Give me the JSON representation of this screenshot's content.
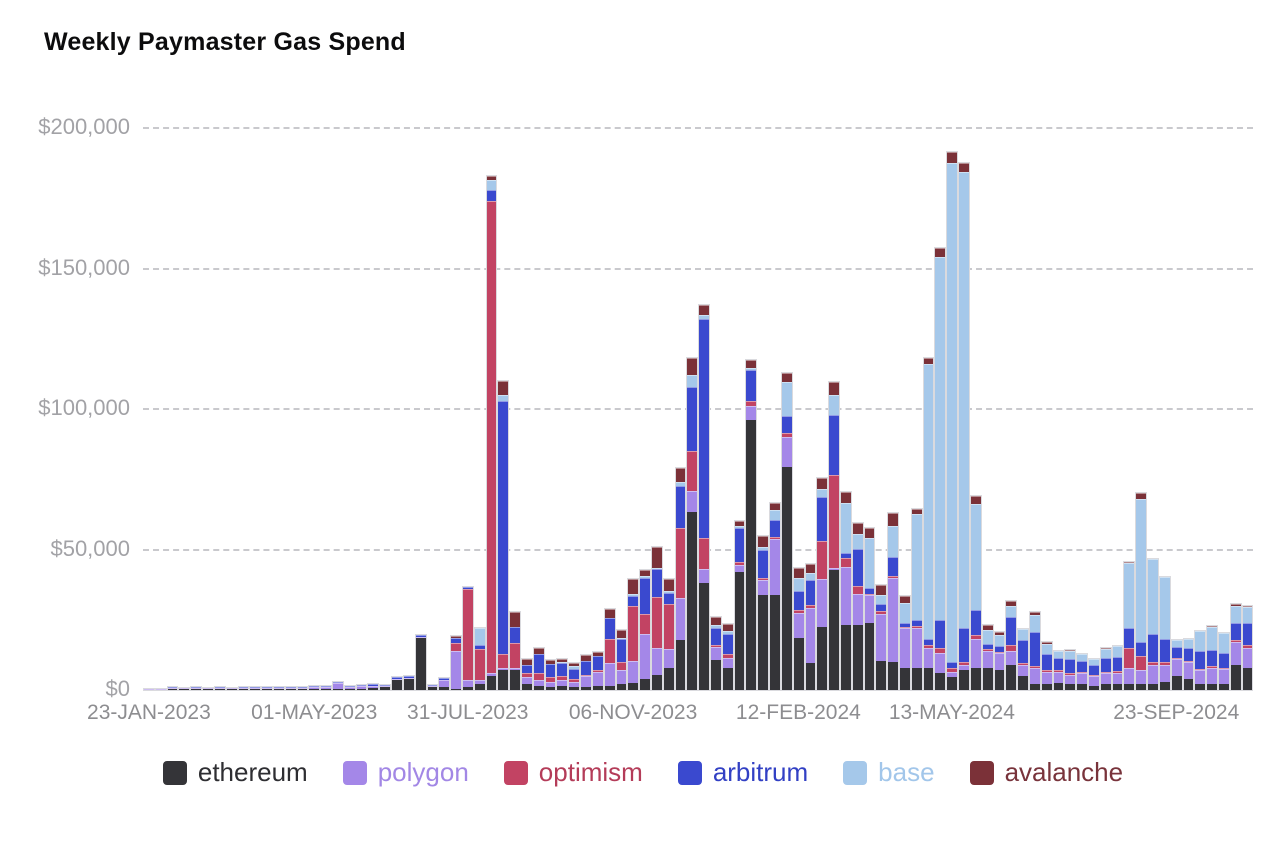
{
  "title": "Weekly Paymaster Gas Spend",
  "chart_data": {
    "type": "bar",
    "stacked": true,
    "title": "Weekly Paymaster Gas Spend",
    "xlabel": "",
    "ylabel": "",
    "ylim": [
      0,
      200000
    ],
    "grid": "horizontal-dashed",
    "legend_position": "bottom-center",
    "x_unit": "week",
    "x_start_date": "2023-01-23",
    "x_step_days": 7,
    "num_bars": 94,
    "y_ticks": [
      {
        "value": 0,
        "label": "$0"
      },
      {
        "value": 50000,
        "label": "$50,000"
      },
      {
        "value": 100000,
        "label": "$100,000"
      },
      {
        "value": 150000,
        "label": "$150,000"
      },
      {
        "value": 200000,
        "label": "$200,000"
      }
    ],
    "x_ticks": [
      {
        "index": 0,
        "label": "23-JAN-2023"
      },
      {
        "index": 14,
        "label": "01-MAY-2023"
      },
      {
        "index": 27,
        "label": "31-JUL-2023"
      },
      {
        "index": 41,
        "label": "06-NOV-2023"
      },
      {
        "index": 55,
        "label": "12-FEB-2024"
      },
      {
        "index": 68,
        "label": "13-MAY-2024"
      },
      {
        "index": 87,
        "label": "23-SEP-2024"
      }
    ],
    "series": [
      {
        "name": "ethereum",
        "color": "#343438",
        "text_color": "#2e2e32",
        "values": [
          150,
          150,
          200,
          200,
          200,
          250,
          250,
          300,
          300,
          300,
          300,
          350,
          400,
          400,
          200,
          200,
          200,
          200,
          200,
          800,
          1000,
          3500,
          4000,
          18500,
          1000,
          1200,
          500,
          1000,
          2000,
          5000,
          7000,
          7000,
          2000,
          1500,
          1000,
          1500,
          1000,
          1000,
          1500,
          1500,
          2000,
          2500,
          4000,
          5500,
          8000,
          17800,
          63500,
          38000,
          10700,
          7800,
          42000,
          96000,
          33800,
          33800,
          79500,
          18400,
          9500,
          22500,
          42700,
          23100,
          23100,
          23700,
          10500,
          10000,
          8000,
          8000,
          8000,
          6000,
          4500,
          7000,
          8000,
          8000,
          7000,
          9000,
          5000,
          2000,
          2000,
          2500,
          2000,
          2000,
          1500,
          2000,
          2000,
          2000,
          2000,
          2000,
          3000,
          5000,
          4000,
          2000,
          2000,
          2000,
          9000,
          8000
        ]
      },
      {
        "name": "polygon",
        "color": "#a487e8",
        "text_color": "#a287e5",
        "values": [
          50,
          50,
          50,
          100,
          100,
          100,
          100,
          150,
          150,
          200,
          250,
          300,
          300,
          350,
          800,
          1000,
          2200,
          1000,
          1100,
          600,
          400,
          300,
          300,
          300,
          300,
          2200,
          13500,
          2500,
          1500,
          1000,
          1000,
          1000,
          2500,
          2000,
          2000,
          2000,
          2000,
          4000,
          5000,
          8000,
          5000,
          8000,
          16000,
          9500,
          6500,
          14800,
          7500,
          5000,
          4500,
          3500,
          2500,
          5000,
          5500,
          20000,
          10500,
          9000,
          19600,
          17000,
          800,
          20800,
          11000,
          10000,
          16500,
          29700,
          14000,
          14000,
          7000,
          7000,
          2000,
          2000,
          10000,
          6000,
          6000,
          5000,
          4000,
          6000,
          4500,
          4000,
          3500,
          4000,
          3500,
          4000,
          4000,
          6000,
          5000,
          7000,
          6000,
          6000,
          6000,
          5000,
          6000,
          5500,
          8000,
          7000
        ]
      },
      {
        "name": "optimism",
        "color": "#c24363",
        "text_color": "#b43c59",
        "values": [
          0,
          0,
          0,
          0,
          0,
          0,
          0,
          0,
          0,
          0,
          0,
          0,
          0,
          0,
          0,
          0,
          0,
          0,
          0,
          0,
          0,
          0,
          0,
          0,
          0,
          0,
          2700,
          32300,
          11000,
          168000,
          5000,
          8800,
          1500,
          2500,
          1700,
          1500,
          1000,
          500,
          500,
          8500,
          3000,
          19500,
          7000,
          18000,
          16000,
          25000,
          14000,
          11000,
          1000,
          1500,
          1000,
          2000,
          700,
          700,
          1500,
          1000,
          1000,
          13600,
          33000,
          3000,
          3000,
          500,
          1000,
          800,
          500,
          800,
          1000,
          2000,
          1500,
          1000,
          1500,
          500,
          700,
          2000,
          700,
          600,
          500,
          500,
          400,
          500,
          400,
          500,
          700,
          7000,
          5000,
          1000,
          1000,
          300,
          500,
          500,
          400,
          500,
          800,
          1000
        ]
      },
      {
        "name": "arbitrum",
        "color": "#3a49cf",
        "text_color": "#3240c4",
        "values": [
          0,
          0,
          50,
          0,
          50,
          0,
          100,
          0,
          100,
          100,
          100,
          100,
          150,
          200,
          200,
          300,
          400,
          300,
          300,
          600,
          400,
          700,
          700,
          800,
          100,
          800,
          2000,
          1000,
          1500,
          4000,
          90000,
          5500,
          3000,
          7000,
          4500,
          4500,
          3500,
          5000,
          5000,
          7500,
          8000,
          3500,
          13000,
          10000,
          4000,
          15000,
          23000,
          78000,
          6000,
          7000,
          12000,
          11000,
          10000,
          6000,
          6000,
          7000,
          9000,
          15500,
          21500,
          2000,
          13000,
          2000,
          2500,
          7000,
          1500,
          2000,
          2000,
          10000,
          2000,
          12000,
          9000,
          2000,
          2000,
          10000,
          8000,
          12000,
          6000,
          4500,
          5000,
          4000,
          3500,
          5000,
          5000,
          7000,
          5000,
          10000,
          8000,
          4000,
          4500,
          6500,
          6000,
          5200,
          6000,
          8000
        ]
      },
      {
        "name": "base",
        "color": "#a5c8ea",
        "text_color": "#a2c6ea",
        "values": [
          0,
          0,
          0,
          0,
          0,
          0,
          0,
          0,
          0,
          0,
          0,
          0,
          0,
          0,
          0,
          0,
          0,
          0,
          0,
          0,
          0,
          0,
          0,
          0,
          0,
          0,
          0,
          0,
          6000,
          3500,
          2000,
          0,
          0,
          0,
          0,
          500,
          1000,
          0,
          0,
          0,
          400,
          700,
          700,
          500,
          700,
          1400,
          4000,
          1500,
          800,
          1200,
          800,
          500,
          1000,
          3500,
          12000,
          4500,
          2500,
          3000,
          7000,
          17700,
          5500,
          18000,
          3500,
          11000,
          7000,
          37800,
          98000,
          129000,
          177400,
          162400,
          37700,
          5000,
          4000,
          3800,
          4000,
          6000,
          3500,
          2500,
          3000,
          2500,
          2000,
          3000,
          4000,
          23200,
          51000,
          26500,
          22100,
          2500,
          3000,
          7000,
          8000,
          7000,
          6000,
          5500
        ]
      },
      {
        "name": "avalanche",
        "color": "#7b3138",
        "text_color": "#78333b",
        "values": [
          0,
          0,
          0,
          0,
          0,
          0,
          0,
          0,
          0,
          0,
          0,
          0,
          0,
          0,
          0,
          0,
          0,
          0,
          0,
          0,
          0,
          0,
          0,
          0,
          0,
          0,
          500,
          0,
          0,
          1500,
          5000,
          5600,
          2000,
          2000,
          1500,
          1000,
          1000,
          2000,
          1600,
          3500,
          3000,
          5500,
          2000,
          7500,
          4500,
          5000,
          6000,
          3500,
          3000,
          2500,
          2000,
          3000,
          4000,
          2400,
          3500,
          3400,
          3400,
          3700,
          4700,
          4000,
          3700,
          3500,
          3500,
          4400,
          2500,
          2000,
          2000,
          3300,
          4000,
          3000,
          3000,
          1500,
          1000,
          2000,
          0,
          1000,
          500,
          0,
          500,
          0,
          0,
          500,
          0,
          500,
          2000,
          0,
          0,
          0,
          0,
          0,
          500,
          0,
          1000,
          500
        ]
      }
    ]
  },
  "legend": {
    "items": [
      {
        "label": "ethereum"
      },
      {
        "label": "polygon"
      },
      {
        "label": "optimism"
      },
      {
        "label": "arbitrum"
      },
      {
        "label": "base"
      },
      {
        "label": "avalanche"
      }
    ]
  },
  "layout_colors": {
    "background": "#ffffff",
    "gridline": "#c9c9cd",
    "y_label_text": "#a2a2a6",
    "x_label_text": "#8d8d90",
    "title_text": "#0c0c0d"
  }
}
